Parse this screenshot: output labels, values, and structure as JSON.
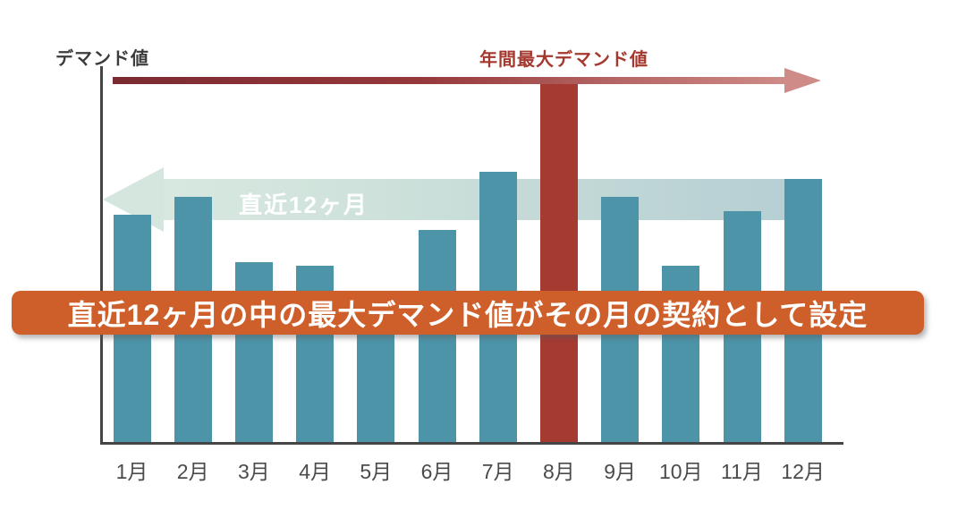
{
  "page": {
    "background_color": "#ffffff"
  },
  "chart": {
    "y_axis_label": "デマンド値",
    "annual_max_label": "年間最大デマンド値",
    "recent_arrow_label": "直近12ヶ月"
  },
  "banner": {
    "text": "直近12ヶ月の中の最大デマンド値がその月の契約として設定",
    "background_color": "#cf5f2a",
    "text_color": "#ffffff"
  },
  "chart_data": {
    "type": "bar",
    "title": "",
    "xlabel": "",
    "ylabel": "デマンド値",
    "categories": [
      "1月",
      "2月",
      "3月",
      "4月",
      "5月",
      "6月",
      "7月",
      "8月",
      "9月",
      "10月",
      "11月",
      "12月"
    ],
    "values": [
      63,
      68,
      50,
      49,
      36,
      59,
      75,
      100,
      68,
      49,
      64,
      73
    ],
    "ylim": [
      0,
      100
    ],
    "value_scale_note": "relative demand values, annual maximum (8月) = 100; y-axis unlabeled",
    "highlight_index": 7,
    "highlight_category": "8月",
    "bar_color": "#4d94a9",
    "highlight_color": "#a53a31",
    "grid": false,
    "legend": false,
    "annotations": [
      {
        "text": "年間最大デマンド値",
        "style": "red gradient arrow pointing right at level of maximum bar",
        "color_start": "#7b2a32",
        "color_end": "#cf8c88"
      },
      {
        "text": "直近12ヶ月",
        "style": "pale green arrow pointing left across recent months band",
        "color_start": "#d8e8e1",
        "color_end": "#b5ced3"
      },
      {
        "text": "直近12ヶ月の中の最大デマンド値がその月の契約として設定",
        "style": "orange rounded banner overlaying chart"
      }
    ],
    "axis_color": "#454545",
    "tick_label_color": "#4b4b4b"
  }
}
